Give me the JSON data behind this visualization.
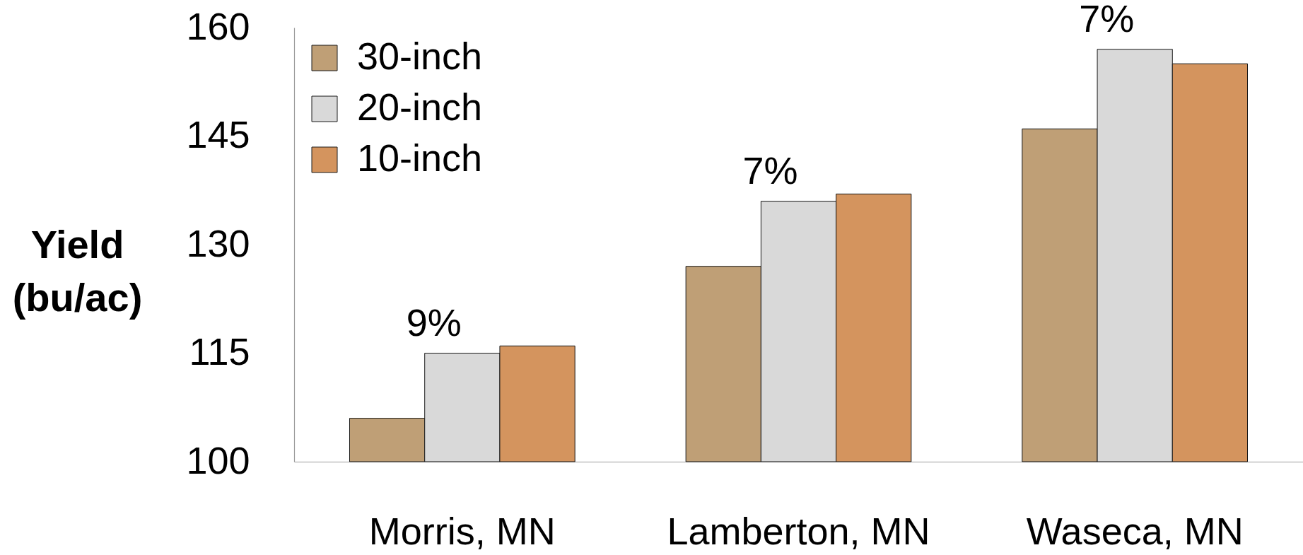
{
  "chart_data": {
    "type": "bar",
    "categories": [
      "Morris, MN",
      "Lamberton, MN",
      "Waseca, MN"
    ],
    "ylabel": "Yield (bu/ac)",
    "ylim": [
      100,
      160
    ],
    "yticks": [
      100,
      115,
      130,
      145,
      160
    ],
    "series": [
      {
        "name": "30-inch",
        "color": "#bf9f76",
        "values": [
          106,
          127,
          146
        ]
      },
      {
        "name": "20-inch",
        "color": "#d9d9d9",
        "values": [
          115,
          136,
          157
        ]
      },
      {
        "name": "10-inch",
        "color": "#d4945e",
        "values": [
          116,
          137,
          155
        ]
      }
    ],
    "legend": "top left",
    "annotations": [
      {
        "text": "9%",
        "x": "Morris, MN",
        "y": 115
      },
      {
        "text": "7%",
        "x": "Lamberton, MN",
        "y": 136
      },
      {
        "text": "7%",
        "x": "Waseca, MN",
        "y": 157
      }
    ]
  }
}
